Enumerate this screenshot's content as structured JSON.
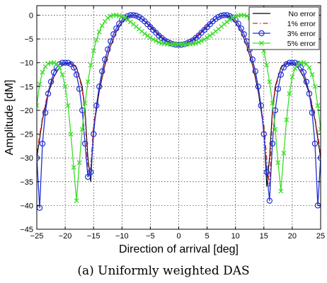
{
  "caption": "(a) Uniformly weighted DAS",
  "chart_data": {
    "type": "line",
    "title": "",
    "xlabel": "Direction of arrival [deg]",
    "ylabel": "Amplitude [dM]",
    "xlim": [
      -25,
      25
    ],
    "ylim": [
      -45,
      2
    ],
    "xticks": [
      -25,
      -20,
      -15,
      -10,
      -5,
      0,
      5,
      10,
      15,
      20,
      25
    ],
    "yticks": [
      0,
      -5,
      -10,
      -15,
      -20,
      -25,
      -30,
      -35,
      -40,
      -45
    ],
    "grid": true,
    "legend_position": "top-right",
    "series": [
      {
        "name": "No error",
        "color": "#000000",
        "style": "solid",
        "marker": "none",
        "x": [
          -25,
          -24,
          -23,
          -22,
          -21,
          -20,
          -19,
          -18,
          -17,
          -16.5,
          -16,
          -15.5,
          -15,
          -14,
          -13,
          -12,
          -11,
          -10,
          -9,
          -8,
          -7,
          -6,
          -5,
          -4,
          -3,
          -2,
          -1,
          0,
          1,
          2,
          3,
          4,
          5,
          6,
          7,
          8,
          9,
          10,
          11,
          12,
          13,
          14,
          15,
          15.5,
          16,
          16.5,
          17,
          18,
          19,
          20,
          21,
          22,
          23,
          24,
          25
        ],
        "y": [
          -30,
          -22,
          -16.5,
          -13,
          -11,
          -10.2,
          -10,
          -11,
          -15,
          -20,
          -30,
          -35,
          -24,
          -16,
          -10.5,
          -6.5,
          -3.5,
          -1.5,
          -0.4,
          0,
          -0.4,
          -1.2,
          -2.2,
          -3.4,
          -4.6,
          -5.5,
          -6,
          -6.1,
          -6,
          -5.5,
          -4.6,
          -3.4,
          -2.2,
          -1.2,
          -0.4,
          0,
          -0.4,
          -1.5,
          -3.5,
          -6.5,
          -10.5,
          -16,
          -24,
          -36,
          -30,
          -20,
          -15,
          -11,
          -10,
          -10.2,
          -11,
          -13,
          -16.5,
          -22,
          -30
        ]
      },
      {
        "name": "1% error",
        "color": "#d62728",
        "style": "dashdot",
        "marker": "none",
        "x": [
          -25,
          -24,
          -23,
          -22,
          -21,
          -20,
          -19,
          -18,
          -17,
          -16.5,
          -16,
          -15.5,
          -15,
          -14,
          -13,
          -12,
          -11,
          -10,
          -9,
          -8,
          -7,
          -6,
          -5,
          -4,
          -3,
          -2,
          -1,
          0,
          1,
          2,
          3,
          4,
          5,
          6,
          7,
          8,
          9,
          10,
          11,
          12,
          13,
          14,
          15,
          15.5,
          16,
          16.5,
          17,
          18,
          19,
          20,
          21,
          22,
          23,
          24,
          25
        ],
        "y": [
          -29,
          -21.5,
          -16,
          -12.8,
          -10.9,
          -10.1,
          -10,
          -11.2,
          -15.5,
          -21,
          -33,
          -32,
          -23,
          -15.5,
          -10.2,
          -6.3,
          -3.4,
          -1.4,
          -0.4,
          0,
          -0.4,
          -1.2,
          -2.2,
          -3.4,
          -4.6,
          -5.5,
          -6,
          -6.1,
          -6,
          -5.5,
          -4.6,
          -3.4,
          -2.2,
          -1.2,
          -0.4,
          0,
          -0.4,
          -1.4,
          -3.4,
          -6.3,
          -10.2,
          -15.5,
          -23,
          -30,
          -36,
          -21,
          -15.5,
          -11.2,
          -10,
          -10.1,
          -10.9,
          -12.8,
          -16,
          -21.5,
          -29
        ]
      },
      {
        "name": "3% error",
        "color": "#1f2fd6",
        "style": "solid",
        "marker": "circle",
        "x": [
          -25,
          -24.5,
          -24,
          -23.5,
          -23,
          -22.5,
          -22,
          -21.5,
          -21,
          -20.5,
          -20,
          -19.5,
          -19,
          -18.5,
          -18,
          -17.5,
          -17,
          -16.5,
          -16,
          -15.5,
          -15,
          -14.5,
          -14,
          -13.5,
          -13,
          -12.5,
          -12,
          -11.5,
          -11,
          -10.5,
          -10,
          -9.5,
          -9,
          -8.5,
          -8,
          -7.5,
          -7,
          -6.5,
          -6,
          -5.5,
          -5,
          -4.5,
          -4,
          -3.5,
          -3,
          -2.5,
          -2,
          -1.5,
          -1,
          -0.5,
          0,
          0.5,
          1,
          1.5,
          2,
          2.5,
          3,
          3.5,
          4,
          4.5,
          5,
          5.5,
          6,
          6.5,
          7,
          7.5,
          8,
          8.5,
          9,
          9.5,
          10,
          10.5,
          11,
          11.5,
          12,
          12.5,
          13,
          13.5,
          14,
          14.5,
          15,
          15.5,
          16,
          16.5,
          17,
          17.5,
          18,
          18.5,
          19,
          19.5,
          20,
          20.5,
          21,
          21.5,
          22,
          22.5,
          23,
          23.5,
          24,
          24.5,
          25
        ],
        "y": [
          -30,
          -40.5,
          -27,
          -20.5,
          -16.5,
          -14,
          -12,
          -11,
          -10.3,
          -10,
          -10,
          -10,
          -10.3,
          -11,
          -12.5,
          -15.5,
          -20,
          -27,
          -34,
          -33,
          -25,
          -19,
          -15,
          -11.8,
          -9.3,
          -7.2,
          -5.5,
          -4,
          -2.8,
          -1.8,
          -1,
          -0.5,
          -0.2,
          0,
          0,
          -0.1,
          -0.4,
          -0.8,
          -1.3,
          -1.9,
          -2.5,
          -3.1,
          -3.7,
          -4.3,
          -4.8,
          -5.3,
          -5.6,
          -5.9,
          -6.1,
          -6.2,
          -6.2,
          -6.2,
          -6.1,
          -5.9,
          -5.6,
          -5.3,
          -4.8,
          -4.3,
          -3.7,
          -3.1,
          -2.5,
          -1.9,
          -1.3,
          -0.8,
          -0.4,
          -0.1,
          0,
          0,
          -0.2,
          -0.5,
          -1,
          -1.8,
          -2.8,
          -4,
          -5.5,
          -7.2,
          -9.3,
          -11.8,
          -15,
          -19,
          -25,
          -33,
          -39,
          -27,
          -20,
          -15.5,
          -12.5,
          -11,
          -10.3,
          -10,
          -10,
          -10,
          -10.3,
          -11,
          -12,
          -14,
          -16.5,
          -20.5,
          -27,
          -40,
          -30
        ]
      },
      {
        "name": "5% error",
        "color": "#3ddc2a",
        "style": "solid",
        "marker": "x",
        "x": [
          -25,
          -24.5,
          -24,
          -23.5,
          -23,
          -22.5,
          -22,
          -21.5,
          -21,
          -20.5,
          -20,
          -19.5,
          -19,
          -18.5,
          -18,
          -17.5,
          -17,
          -16.5,
          -16,
          -15.5,
          -15,
          -14.5,
          -14,
          -13.5,
          -13,
          -12.5,
          -12,
          -11.5,
          -11,
          -10.5,
          -10,
          -9.5,
          -9,
          -8.5,
          -8,
          -7.5,
          -7,
          -6.5,
          -6,
          -5.5,
          -5,
          -4.5,
          -4,
          -3.5,
          -3,
          -2.5,
          -2,
          -1.5,
          -1,
          -0.5,
          0,
          0.5,
          1,
          1.5,
          2,
          2.5,
          3,
          3.5,
          4,
          4.5,
          5,
          5.5,
          6,
          6.5,
          7,
          7.5,
          8,
          8.5,
          9,
          9.5,
          10,
          10.5,
          11,
          11.5,
          12,
          12.5,
          13,
          13.5,
          14,
          14.5,
          15,
          15.5,
          16,
          16.5,
          17,
          17.5,
          18,
          18.5,
          19,
          19.5,
          20,
          20.5,
          21,
          21.5,
          22,
          22.5,
          23,
          23.5,
          24,
          24.5,
          25
        ],
        "y": [
          -19,
          -14.5,
          -12,
          -10.8,
          -10.2,
          -10,
          -10,
          -10.3,
          -11,
          -12.5,
          -15,
          -19,
          -25,
          -32,
          -39,
          -31,
          -24,
          -18.5,
          -14,
          -10.5,
          -7.5,
          -5.2,
          -3.5,
          -2.2,
          -1.3,
          -0.6,
          -0.2,
          0,
          0,
          -0.1,
          -0.3,
          -0.6,
          -1,
          -1.4,
          -1.9,
          -2.4,
          -2.9,
          -3.4,
          -3.9,
          -4.3,
          -4.7,
          -5.1,
          -5.4,
          -5.7,
          -5.9,
          -6,
          -6.1,
          -6.1,
          -6.1,
          -6.1,
          -6.1,
          -6.1,
          -6.1,
          -6.1,
          -6.1,
          -6,
          -5.9,
          -5.7,
          -5.4,
          -5.1,
          -4.7,
          -4.3,
          -3.9,
          -3.4,
          -2.9,
          -2.4,
          -1.9,
          -1.4,
          -1,
          -0.6,
          -0.3,
          -0.1,
          0,
          0,
          -0.2,
          -0.6,
          -1.3,
          -2.2,
          -3.5,
          -5.2,
          -7.5,
          -10.5,
          -14,
          -18.5,
          -24,
          -31,
          -37,
          -29,
          -22,
          -16.5,
          -13,
          -11.2,
          -10.3,
          -10,
          -10,
          -10.3,
          -11,
          -12.5,
          -15,
          -19,
          -24
        ]
      }
    ]
  }
}
